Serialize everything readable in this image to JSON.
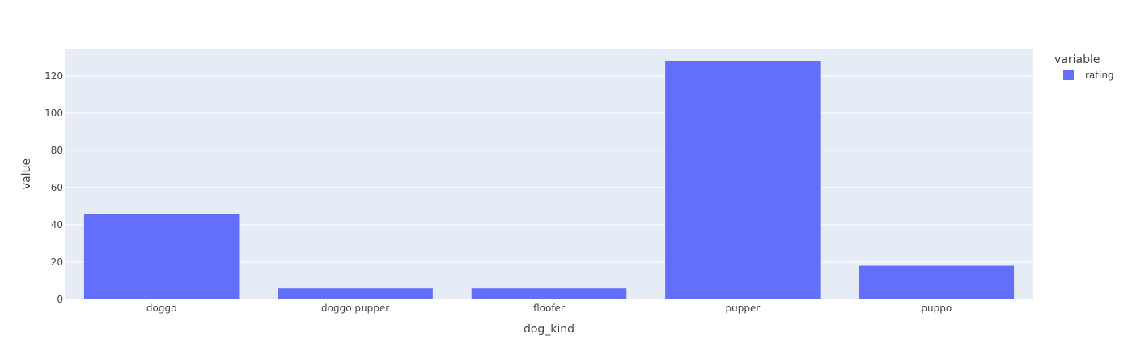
{
  "chart_data": {
    "type": "bar",
    "categories": [
      "doggo",
      "doggo pupper",
      "floofer",
      "pupper",
      "puppo"
    ],
    "series": [
      {
        "name": "rating",
        "values": [
          46,
          6,
          6,
          128,
          18
        ],
        "color": "#636efa"
      }
    ],
    "xlabel": "dog_kind",
    "ylabel": "value",
    "ylim": [
      0,
      134.7
    ],
    "yticks": [
      0,
      20,
      40,
      60,
      80,
      100,
      120
    ],
    "ytick_labels": [
      "0",
      "20",
      "40",
      "60",
      "80",
      "100",
      "120"
    ],
    "grid": true,
    "legend": {
      "title": "variable",
      "placement": "top-right"
    },
    "plot_background": "#e5ecf6",
    "gridline_color": "#ffffff"
  }
}
